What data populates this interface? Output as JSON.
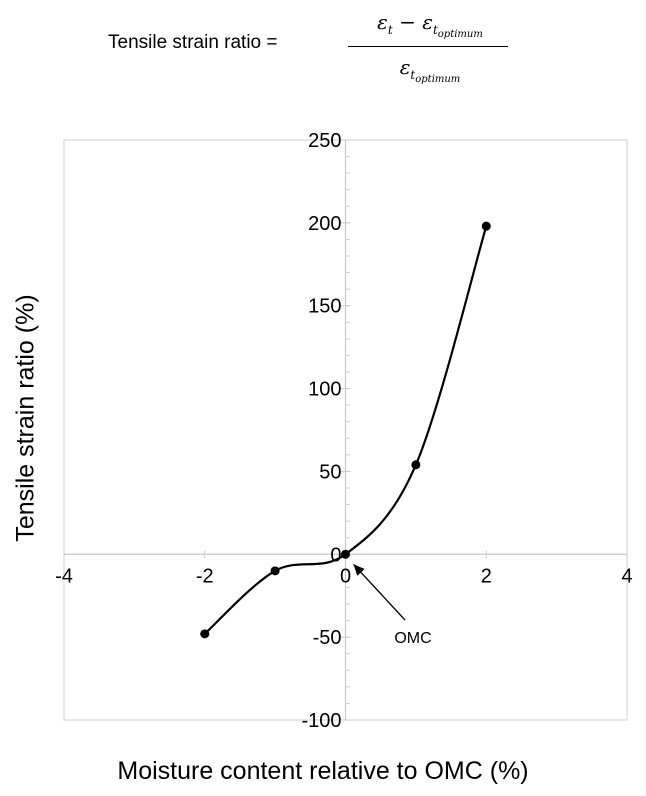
{
  "equation": {
    "lhs": "Tensile strain ratio =",
    "numerator": {
      "symbol": "ε",
      "sub1": "t",
      "operator": "−",
      "sub2": "t",
      "subsub": "optimum"
    },
    "denominator": {
      "symbol": "ε",
      "sub": "t",
      "subsub": "optimum"
    }
  },
  "chart_data": {
    "type": "line",
    "title": "",
    "xlabel": "Moisture content relative to OMC (%)",
    "ylabel": "Tensile strain ratio (%)",
    "xlim": [
      -4,
      4
    ],
    "ylim": [
      -100,
      250
    ],
    "xticks": [
      -4,
      -2,
      0,
      2,
      4
    ],
    "xtick_labels": [
      "-4",
      "-2",
      "0",
      "2",
      "4"
    ],
    "yticks": [
      -100,
      -50,
      0,
      50,
      100,
      150,
      200,
      250
    ],
    "ytick_labels": [
      "-100",
      "-50",
      "0",
      "50",
      "100",
      "150",
      "200",
      "250"
    ],
    "grid": false,
    "legend": "none",
    "line_color": "#000000",
    "series": [
      {
        "x": [
          -2,
          -1,
          0,
          1,
          2
        ],
        "y": [
          -48,
          -10,
          0,
          54,
          198
        ]
      }
    ],
    "annotations": [
      {
        "text": "OMC",
        "points_to": {
          "x": 0,
          "y": 0
        }
      }
    ]
  }
}
